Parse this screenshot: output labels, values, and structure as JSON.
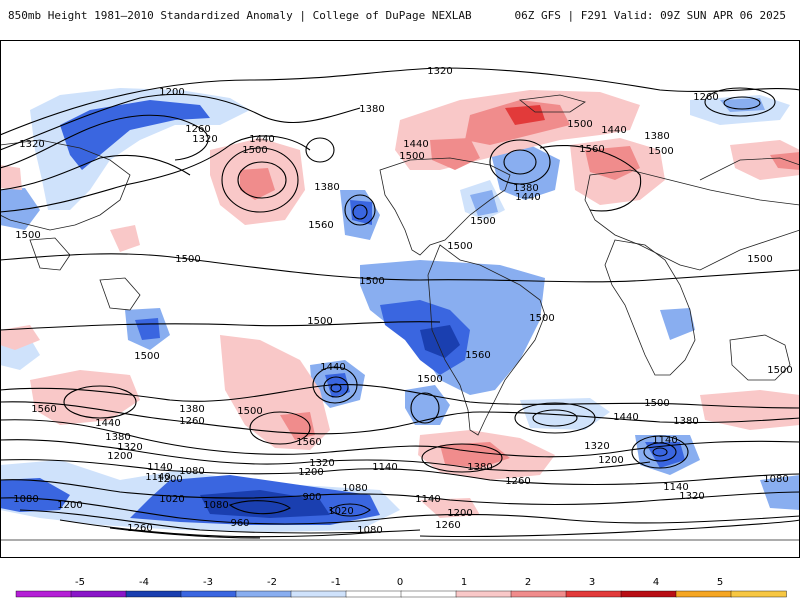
{
  "header": {
    "left_title": "850mb Height 1981–2010 Standardized Anomaly | College of DuPage NEXLAB",
    "right_title": "06Z GFS | F291 Valid: 09Z SUN APR 06 2025"
  },
  "contour_labels": [
    {
      "id": "l1",
      "text": "1200"
    },
    {
      "id": "l2",
      "text": "1260"
    },
    {
      "id": "l3",
      "text": "1320"
    },
    {
      "id": "l4",
      "text": "1320"
    },
    {
      "id": "l5",
      "text": "1440"
    },
    {
      "id": "l6",
      "text": "1500"
    },
    {
      "id": "l7",
      "text": "1380"
    },
    {
      "id": "l8",
      "text": "1380"
    },
    {
      "id": "l9",
      "text": "1320"
    },
    {
      "id": "l10",
      "text": "1440"
    },
    {
      "id": "l11",
      "text": "1560"
    },
    {
      "id": "l12",
      "text": "1500"
    },
    {
      "id": "l13",
      "text": "1440"
    },
    {
      "id": "l14",
      "text": "1500"
    },
    {
      "id": "l15",
      "text": "1380"
    },
    {
      "id": "l16",
      "text": "1440"
    },
    {
      "id": "l17",
      "text": "1500"
    },
    {
      "id": "l18",
      "text": "1560"
    },
    {
      "id": "l19",
      "text": "1500"
    },
    {
      "id": "l20",
      "text": "1380"
    },
    {
      "id": "l21",
      "text": "1260"
    },
    {
      "id": "l22",
      "text": "1500"
    },
    {
      "id": "l23",
      "text": "1500"
    },
    {
      "id": "l24",
      "text": "1500"
    },
    {
      "id": "l25",
      "text": "1500"
    },
    {
      "id": "l26",
      "text": "1500"
    },
    {
      "id": "l27",
      "text": "1500"
    },
    {
      "id": "l28",
      "text": "1500"
    },
    {
      "id": "l29",
      "text": "1500"
    },
    {
      "id": "l30",
      "text": "1440"
    },
    {
      "id": "l31",
      "text": "1500"
    },
    {
      "id": "l32",
      "text": "1560"
    },
    {
      "id": "l33",
      "text": "1500"
    },
    {
      "id": "l34",
      "text": "1560"
    },
    {
      "id": "l35",
      "text": "1440"
    },
    {
      "id": "l36",
      "text": "1380"
    },
    {
      "id": "l37",
      "text": "1320"
    },
    {
      "id": "l38",
      "text": "1200"
    },
    {
      "id": "l39",
      "text": "1380"
    },
    {
      "id": "l40",
      "text": "1260"
    },
    {
      "id": "l41",
      "text": "1500"
    },
    {
      "id": "l42",
      "text": "1560"
    },
    {
      "id": "l43",
      "text": "1140"
    },
    {
      "id": "l44",
      "text": "1200"
    },
    {
      "id": "l45",
      "text": "1140"
    },
    {
      "id": "l46",
      "text": "1080"
    },
    {
      "id": "l47",
      "text": "1320"
    },
    {
      "id": "l48",
      "text": "1200"
    },
    {
      "id": "l49",
      "text": "1140"
    },
    {
      "id": "l50",
      "text": "1380"
    },
    {
      "id": "l51",
      "text": "1260"
    },
    {
      "id": "l52",
      "text": "1500"
    },
    {
      "id": "l53",
      "text": "1440"
    },
    {
      "id": "l54",
      "text": "1380"
    },
    {
      "id": "l55",
      "text": "1320"
    },
    {
      "id": "l56",
      "text": "1200"
    },
    {
      "id": "l57",
      "text": "1140"
    },
    {
      "id": "l58",
      "text": "1140"
    },
    {
      "id": "l59",
      "text": "1320"
    },
    {
      "id": "l60",
      "text": "1080"
    },
    {
      "id": "l61",
      "text": "1080"
    },
    {
      "id": "l62",
      "text": "1200"
    },
    {
      "id": "l63",
      "text": "1020"
    },
    {
      "id": "l64",
      "text": "1080"
    },
    {
      "id": "l65",
      "text": "960"
    },
    {
      "id": "l66",
      "text": "900"
    },
    {
      "id": "l67",
      "text": "1020"
    },
    {
      "id": "l68",
      "text": "1080"
    },
    {
      "id": "l69",
      "text": "1140"
    },
    {
      "id": "l70",
      "text": "1200"
    },
    {
      "id": "l71",
      "text": "1260"
    },
    {
      "id": "l72",
      "text": "1260"
    },
    {
      "id": "l73",
      "text": "1080"
    }
  ],
  "colorbar": {
    "ticks": [
      "-5",
      "-4",
      "-3",
      "-2",
      "-1",
      "0",
      "1",
      "2",
      "3",
      "4",
      "5"
    ],
    "colors": [
      "#b41fd6",
      "#8a16c8",
      "#1a3fb0",
      "#3a66e0",
      "#89aef0",
      "#cfe2fb",
      "#ffffff",
      "#ffffff",
      "#f9c8c8",
      "#f08c8c",
      "#e23a3a",
      "#b80e14",
      "#f5a623",
      "#f7c743"
    ]
  }
}
